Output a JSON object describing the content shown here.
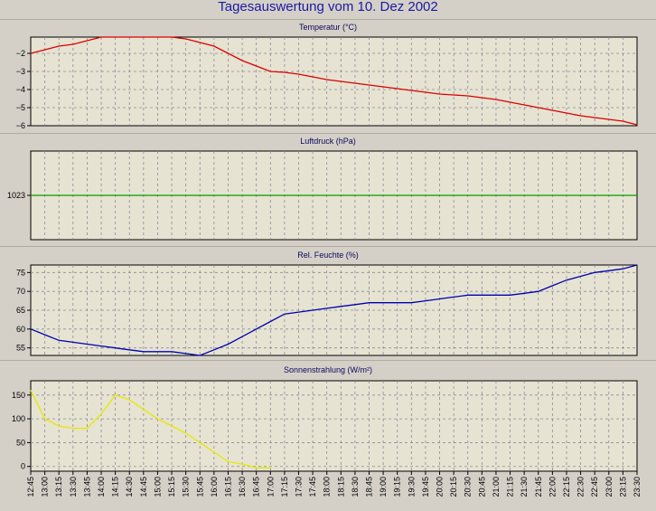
{
  "title": "Tagesauswertung vom 10. Dez 2002",
  "colors": {
    "background": "#d4d0c8",
    "plot": "#e6e3d2",
    "grid": "#8a8a9a"
  },
  "x_labels": [
    "12:45",
    "13:00",
    "13:15",
    "13:30",
    "13:45",
    "14:00",
    "14:15",
    "14:30",
    "14:45",
    "15:00",
    "15:15",
    "15:30",
    "15:45",
    "16:00",
    "16:15",
    "16:30",
    "16:45",
    "17:00",
    "17:15",
    "17:30",
    "17:45",
    "18:00",
    "18:15",
    "18:30",
    "18:45",
    "19:00",
    "19:15",
    "19:30",
    "19:45",
    "20:00",
    "20:15",
    "20:30",
    "20:45",
    "21:00",
    "21:15",
    "21:30",
    "21:45",
    "22:00",
    "22:15",
    "22:30",
    "22:45",
    "23:00",
    "23:15",
    "23:30"
  ],
  "chart_data": [
    {
      "type": "line",
      "title": "Temperatur (°C)",
      "color": "#dd0000",
      "yticks": [
        -2,
        -3,
        -4,
        -5,
        -6
      ],
      "ylim": [
        -6,
        -1.1
      ],
      "x": [
        "12:45",
        "13:00",
        "13:15",
        "13:30",
        "13:45",
        "14:00",
        "14:15",
        "14:30",
        "14:45",
        "15:00",
        "15:15",
        "15:30",
        "15:45",
        "16:00",
        "16:15",
        "16:30",
        "16:45",
        "17:00",
        "17:15",
        "17:30",
        "17:45",
        "18:00",
        "18:15",
        "18:30",
        "18:45",
        "19:00",
        "19:15",
        "19:30",
        "19:45",
        "20:00",
        "20:15",
        "20:30",
        "20:45",
        "21:00",
        "21:15",
        "21:30",
        "21:45",
        "22:00",
        "22:15",
        "22:30",
        "22:45",
        "23:00",
        "23:15",
        "23:30"
      ],
      "values": [
        -2.0,
        -1.8,
        -1.6,
        -1.5,
        -1.3,
        -1.1,
        -1.1,
        -1.1,
        -1.1,
        -1.1,
        -1.1,
        -1.2,
        -1.4,
        -1.6,
        -2.0,
        -2.4,
        -2.7,
        -3.0,
        -3.05,
        -3.15,
        -3.3,
        -3.45,
        -3.55,
        -3.65,
        -3.75,
        -3.85,
        -3.95,
        -4.05,
        -4.15,
        -4.25,
        -4.3,
        -4.35,
        -4.45,
        -4.55,
        -4.7,
        -4.85,
        -5.0,
        -5.15,
        -5.3,
        -5.45,
        -5.55,
        -5.65,
        -5.75,
        -5.95
      ]
    },
    {
      "type": "line",
      "title": "Luftdruck (hPa)",
      "color": "#00a000",
      "yticks": [
        1023
      ],
      "ylim": [
        1022,
        1024
      ],
      "x": [
        "12:45",
        "23:30"
      ],
      "values": [
        1023,
        1023
      ]
    },
    {
      "type": "line",
      "title": "Rel. Feuchte (%)",
      "color": "#0000b0",
      "yticks": [
        75,
        70,
        65,
        60,
        55
      ],
      "ylim": [
        53,
        77
      ],
      "x": [
        "12:45",
        "13:00",
        "13:15",
        "13:30",
        "13:45",
        "14:00",
        "14:15",
        "14:30",
        "14:45",
        "15:00",
        "15:15",
        "15:30",
        "15:45",
        "16:00",
        "16:15",
        "16:30",
        "16:45",
        "17:00",
        "17:15",
        "17:30",
        "17:45",
        "18:00",
        "18:15",
        "18:30",
        "18:45",
        "19:00",
        "19:15",
        "19:30",
        "19:45",
        "20:00",
        "20:15",
        "20:30",
        "20:45",
        "21:00",
        "21:15",
        "21:30",
        "21:45",
        "22:00",
        "22:15",
        "22:30",
        "22:45",
        "23:00",
        "23:15",
        "23:30"
      ],
      "values": [
        60,
        58.5,
        57,
        56.5,
        56,
        55.5,
        55,
        54.5,
        54,
        54,
        54,
        53.5,
        53,
        54.5,
        56,
        58,
        60,
        62,
        64,
        64.5,
        65,
        65.5,
        66,
        66.5,
        67,
        67,
        67,
        67,
        67.5,
        68,
        68.5,
        69,
        69,
        69,
        69,
        69.5,
        70,
        71.5,
        73,
        74,
        75,
        75.5,
        76,
        77
      ]
    },
    {
      "type": "line",
      "title": "Sonnenstrahlung (W/m²)",
      "color": "#e8e800",
      "yticks": [
        150,
        100,
        50,
        0
      ],
      "ylim": [
        -10,
        180
      ],
      "x": [
        "12:45",
        "13:00",
        "13:15",
        "13:30",
        "13:45",
        "14:00",
        "14:15",
        "14:30",
        "14:45",
        "15:00",
        "15:15",
        "15:30",
        "15:45",
        "16:00",
        "16:15",
        "16:30",
        "16:45",
        "17:00"
      ],
      "values": [
        160,
        100,
        85,
        80,
        80,
        110,
        150,
        140,
        120,
        100,
        85,
        70,
        50,
        30,
        10,
        5,
        -3,
        -3
      ]
    }
  ]
}
